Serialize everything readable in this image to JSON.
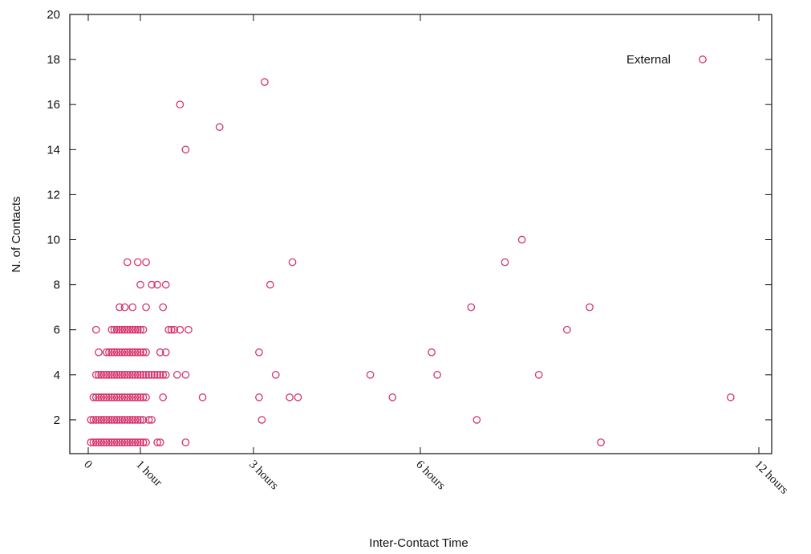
{
  "chart_data": {
    "type": "scatter",
    "xlabel": "Inter-Contact Time",
    "ylabel": "N. of Contacts",
    "x_unit": "hours",
    "x_ticks": [
      {
        "value": 0,
        "label": "0"
      },
      {
        "value": 1,
        "label": "1 hour"
      },
      {
        "value": 3,
        "label": "3 hours"
      },
      {
        "value": 6,
        "label": "6 hours"
      },
      {
        "value": 12,
        "label": "12 hours"
      }
    ],
    "y_ticks": [
      2,
      4,
      6,
      8,
      10,
      12,
      14,
      16,
      18,
      20
    ],
    "ylim": [
      0.5,
      20
    ],
    "legend_position": "top-right",
    "grid": false,
    "series": [
      {
        "name": "External",
        "color": "#d6336c",
        "marker": "circle-open",
        "points": [
          [
            0.05,
            1
          ],
          [
            0.1,
            1
          ],
          [
            0.15,
            1
          ],
          [
            0.2,
            1
          ],
          [
            0.25,
            1
          ],
          [
            0.3,
            1
          ],
          [
            0.35,
            1
          ],
          [
            0.4,
            1
          ],
          [
            0.45,
            1
          ],
          [
            0.5,
            1
          ],
          [
            0.55,
            1
          ],
          [
            0.6,
            1
          ],
          [
            0.65,
            1
          ],
          [
            0.7,
            1
          ],
          [
            0.75,
            1
          ],
          [
            0.8,
            1
          ],
          [
            0.85,
            1
          ],
          [
            0.9,
            1
          ],
          [
            0.95,
            1
          ],
          [
            1.0,
            1
          ],
          [
            1.05,
            1
          ],
          [
            1.1,
            1
          ],
          [
            1.3,
            1
          ],
          [
            1.35,
            1
          ],
          [
            1.8,
            1
          ],
          [
            9.2,
            1
          ],
          [
            0.05,
            2
          ],
          [
            0.1,
            2
          ],
          [
            0.15,
            2
          ],
          [
            0.2,
            2
          ],
          [
            0.25,
            2
          ],
          [
            0.3,
            2
          ],
          [
            0.35,
            2
          ],
          [
            0.4,
            2
          ],
          [
            0.45,
            2
          ],
          [
            0.5,
            2
          ],
          [
            0.55,
            2
          ],
          [
            0.6,
            2
          ],
          [
            0.65,
            2
          ],
          [
            0.7,
            2
          ],
          [
            0.75,
            2
          ],
          [
            0.8,
            2
          ],
          [
            0.85,
            2
          ],
          [
            0.9,
            2
          ],
          [
            0.95,
            2
          ],
          [
            1.0,
            2
          ],
          [
            1.05,
            2
          ],
          [
            1.15,
            2
          ],
          [
            1.2,
            2
          ],
          [
            3.15,
            2
          ],
          [
            7.0,
            2
          ],
          [
            0.1,
            3
          ],
          [
            0.15,
            3
          ],
          [
            0.2,
            3
          ],
          [
            0.25,
            3
          ],
          [
            0.3,
            3
          ],
          [
            0.35,
            3
          ],
          [
            0.4,
            3
          ],
          [
            0.45,
            3
          ],
          [
            0.5,
            3
          ],
          [
            0.55,
            3
          ],
          [
            0.6,
            3
          ],
          [
            0.65,
            3
          ],
          [
            0.7,
            3
          ],
          [
            0.75,
            3
          ],
          [
            0.8,
            3
          ],
          [
            0.85,
            3
          ],
          [
            0.9,
            3
          ],
          [
            0.95,
            3
          ],
          [
            1.0,
            3
          ],
          [
            1.05,
            3
          ],
          [
            1.1,
            3
          ],
          [
            1.4,
            3
          ],
          [
            2.1,
            3
          ],
          [
            3.1,
            3
          ],
          [
            3.65,
            3
          ],
          [
            3.8,
            3
          ],
          [
            5.5,
            3
          ],
          [
            11.5,
            3
          ],
          [
            0.15,
            4
          ],
          [
            0.2,
            4
          ],
          [
            0.25,
            4
          ],
          [
            0.3,
            4
          ],
          [
            0.35,
            4
          ],
          [
            0.4,
            4
          ],
          [
            0.45,
            4
          ],
          [
            0.5,
            4
          ],
          [
            0.55,
            4
          ],
          [
            0.6,
            4
          ],
          [
            0.65,
            4
          ],
          [
            0.7,
            4
          ],
          [
            0.75,
            4
          ],
          [
            0.8,
            4
          ],
          [
            0.85,
            4
          ],
          [
            0.9,
            4
          ],
          [
            0.95,
            4
          ],
          [
            1.0,
            4
          ],
          [
            1.05,
            4
          ],
          [
            1.1,
            4
          ],
          [
            1.15,
            4
          ],
          [
            1.2,
            4
          ],
          [
            1.25,
            4
          ],
          [
            1.3,
            4
          ],
          [
            1.35,
            4
          ],
          [
            1.4,
            4
          ],
          [
            1.45,
            4
          ],
          [
            1.65,
            4
          ],
          [
            1.8,
            4
          ],
          [
            3.4,
            4
          ],
          [
            5.1,
            4
          ],
          [
            6.3,
            4
          ],
          [
            8.1,
            4
          ],
          [
            0.2,
            5
          ],
          [
            0.35,
            5
          ],
          [
            0.4,
            5
          ],
          [
            0.45,
            5
          ],
          [
            0.5,
            5
          ],
          [
            0.55,
            5
          ],
          [
            0.6,
            5
          ],
          [
            0.65,
            5
          ],
          [
            0.7,
            5
          ],
          [
            0.75,
            5
          ],
          [
            0.8,
            5
          ],
          [
            0.85,
            5
          ],
          [
            0.9,
            5
          ],
          [
            0.95,
            5
          ],
          [
            1.0,
            5
          ],
          [
            1.05,
            5
          ],
          [
            1.1,
            5
          ],
          [
            1.35,
            5
          ],
          [
            1.45,
            5
          ],
          [
            3.1,
            5
          ],
          [
            6.2,
            5
          ],
          [
            0.15,
            6
          ],
          [
            0.45,
            6
          ],
          [
            0.5,
            6
          ],
          [
            0.55,
            6
          ],
          [
            0.6,
            6
          ],
          [
            0.65,
            6
          ],
          [
            0.7,
            6
          ],
          [
            0.75,
            6
          ],
          [
            0.8,
            6
          ],
          [
            0.85,
            6
          ],
          [
            0.9,
            6
          ],
          [
            0.95,
            6
          ],
          [
            1.0,
            6
          ],
          [
            1.05,
            6
          ],
          [
            1.5,
            6
          ],
          [
            1.55,
            6
          ],
          [
            1.6,
            6
          ],
          [
            1.7,
            6
          ],
          [
            1.85,
            6
          ],
          [
            8.6,
            6
          ],
          [
            0.6,
            7
          ],
          [
            0.7,
            7
          ],
          [
            0.85,
            7
          ],
          [
            1.1,
            7
          ],
          [
            1.4,
            7
          ],
          [
            6.9,
            7
          ],
          [
            9.0,
            7
          ],
          [
            1.0,
            8
          ],
          [
            1.2,
            8
          ],
          [
            1.3,
            8
          ],
          [
            1.45,
            8
          ],
          [
            3.3,
            8
          ],
          [
            0.75,
            9
          ],
          [
            0.95,
            9
          ],
          [
            1.1,
            9
          ],
          [
            3.7,
            9
          ],
          [
            7.5,
            9
          ],
          [
            7.8,
            10
          ],
          [
            1.7,
            16
          ],
          [
            1.8,
            14
          ],
          [
            2.4,
            15
          ],
          [
            3.2,
            17
          ]
        ]
      }
    ]
  }
}
